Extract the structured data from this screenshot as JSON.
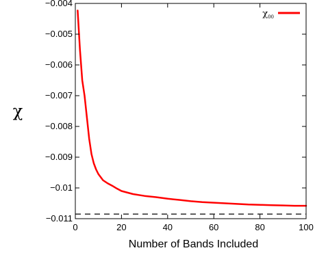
{
  "chart_data": {
    "type": "line",
    "title": "",
    "xlabel": "Number of Bands Included",
    "ylabel": "χ",
    "xlim": [
      0,
      100
    ],
    "ylim": [
      -0.011,
      -0.004
    ],
    "x_ticks": [
      0,
      20,
      40,
      60,
      80,
      100
    ],
    "x_tick_labels": [
      "0",
      "20",
      "40",
      "60",
      "80",
      "100"
    ],
    "y_ticks": [
      -0.004,
      -0.005,
      -0.006,
      -0.007,
      -0.008,
      -0.009,
      -0.01,
      -0.011
    ],
    "y_tick_labels": [
      "−0.004",
      "−0.005",
      "−0.006",
      "−0.007",
      "−0.008",
      "−0.009",
      "−0.01",
      "−0.011"
    ],
    "legend": {
      "position": "top-right",
      "symbol": "χ",
      "subscript": "00"
    },
    "series": [
      {
        "name": "χ00",
        "color": "#ff0000",
        "style": "solid",
        "x": [
          1,
          2,
          3,
          4,
          5,
          6,
          7,
          8,
          9,
          10,
          12,
          14,
          16,
          18,
          20,
          25,
          30,
          35,
          40,
          45,
          50,
          55,
          60,
          65,
          70,
          75,
          80,
          85,
          90,
          95,
          100
        ],
        "y": [
          -0.00423,
          -0.0055,
          -0.0065,
          -0.007,
          -0.0077,
          -0.0084,
          -0.0089,
          -0.0092,
          -0.0094,
          -0.00955,
          -0.00975,
          -0.00985,
          -0.00993,
          -0.01002,
          -0.0101,
          -0.0102,
          -0.01026,
          -0.0103,
          -0.01035,
          -0.01039,
          -0.01043,
          -0.01046,
          -0.01048,
          -0.0105,
          -0.01052,
          -0.01054,
          -0.01055,
          -0.01056,
          -0.01057,
          -0.01058,
          -0.01058
        ]
      },
      {
        "name": "",
        "color": "#000000",
        "style": "dashed",
        "x": [
          0,
          100
        ],
        "y": [
          -0.01085,
          -0.01085
        ]
      }
    ]
  }
}
